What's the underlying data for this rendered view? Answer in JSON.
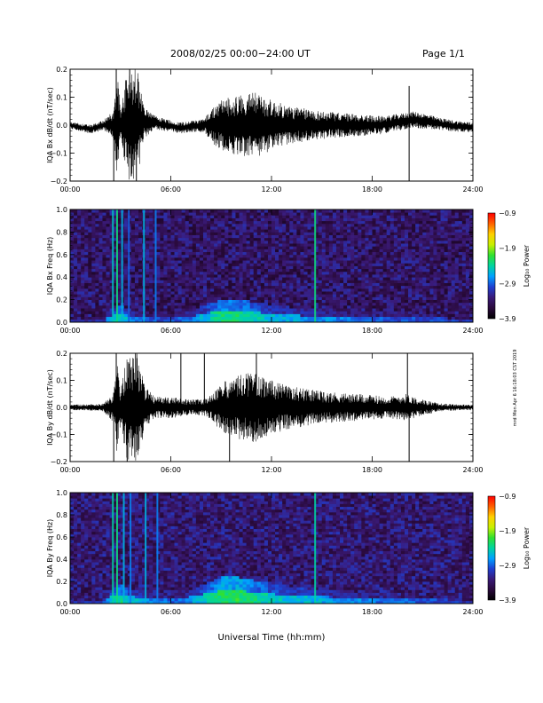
{
  "header": {
    "title": "2008/02/25  00:00−24:00 UT",
    "page": "Page 1/1"
  },
  "footer": {
    "xlabel": "Universal Time (hh:mm)",
    "side_note": "mrd Mon Apr 6 16:18:03 CST 2019"
  },
  "colors": {
    "trace": "#000000",
    "colormap": [
      "#000000",
      "#2a0a3c",
      "#3a1a78",
      "#1f3fd0",
      "#00a0ff",
      "#00d4a0",
      "#30e030",
      "#c8f000",
      "#ffd000",
      "#ff6000",
      "#ff0000"
    ]
  },
  "chart_data": [
    {
      "type": "line",
      "name": "iqa-bx-waveform",
      "ylabel": "IQA Bx dB/dt (nT/sec)",
      "xlim": [
        0,
        24
      ],
      "ylim": [
        -0.2,
        0.2
      ],
      "xticks": [
        "00:00",
        "06:00",
        "12:00",
        "18:00",
        "24:00"
      ],
      "yticks": [
        "−0.2",
        "−0.1",
        "0.0",
        "0.1",
        "0.2"
      ],
      "ytick_values": [
        -0.2,
        -0.1,
        0.0,
        0.1,
        0.2
      ],
      "envelope": {
        "x": [
          0,
          1,
          2,
          2.6,
          2.8,
          3.0,
          3.4,
          3.7,
          4.0,
          4.4,
          5.0,
          6.0,
          7.0,
          8.0,
          8.4,
          9.0,
          10.0,
          11.0,
          12.0,
          13.0,
          14.0,
          15.0,
          16.0,
          17.0,
          18.0,
          19.0,
          20.0,
          21.0,
          22.0,
          23.0,
          24.0
        ],
        "amp": [
          0.012,
          0.015,
          0.018,
          0.05,
          0.2,
          0.06,
          0.2,
          0.2,
          0.2,
          0.06,
          0.025,
          0.02,
          0.02,
          0.025,
          0.06,
          0.09,
          0.11,
          0.12,
          0.09,
          0.07,
          0.06,
          0.05,
          0.045,
          0.04,
          0.035,
          0.03,
          0.03,
          0.028,
          0.022,
          0.02,
          0.02
        ]
      },
      "offset": {
        "x": [
          0,
          1.2,
          2.0,
          5.0,
          6.5,
          8.0,
          18.5,
          20.5,
          22.5,
          24.0
        ],
        "y": [
          0.0,
          -0.015,
          0.0,
          0.01,
          -0.01,
          0.0,
          0.0,
          0.02,
          0.0,
          -0.01
        ]
      },
      "spikes": [
        {
          "t": 2.6,
          "y": -0.2
        },
        {
          "t": 2.75,
          "y": 0.2
        },
        {
          "t": 3.55,
          "y": 0.2
        },
        {
          "t": 3.95,
          "y": -0.2
        },
        {
          "t": 20.2,
          "y": 0.14
        },
        {
          "t": 20.2,
          "y": -0.2
        }
      ]
    },
    {
      "type": "heatmap",
      "name": "iqa-bx-spectrogram",
      "ylabel": "IQA Bx Freq (Hz)",
      "colorbar_label": "Log₁₀ Power",
      "xlim": [
        0,
        24
      ],
      "ylim": [
        0,
        1.0
      ],
      "clim": [
        -3.9,
        -0.9
      ],
      "xticks": [
        "00:00",
        "06:00",
        "12:00",
        "18:00",
        "24:00"
      ],
      "yticks": [
        "0.0",
        "0.2",
        "0.4",
        "0.6",
        "0.8",
        "1.0"
      ],
      "ytick_values": [
        0,
        0.2,
        0.4,
        0.6,
        0.8,
        1.0
      ],
      "cbar_ticks": [
        "−0.9",
        "−1.9",
        "−2.9",
        "−3.9"
      ],
      "cbar_tick_values": [
        -0.9,
        -1.9,
        -2.9,
        -3.9
      ],
      "background_power": -3.4,
      "low_freq_band": {
        "x": [
          0,
          2,
          2.5,
          3.0,
          3.5,
          4.0,
          5.0,
          6.0,
          7.0,
          8.0,
          9.0,
          10.0,
          12.0,
          14.0,
          16.0,
          18.0,
          20.0,
          22.0,
          24.0
        ],
        "power": [
          -3.2,
          -3.1,
          -2.6,
          -2.4,
          -2.7,
          -2.8,
          -3.0,
          -3.0,
          -2.9,
          -2.6,
          -2.3,
          -2.3,
          -2.6,
          -2.7,
          -2.8,
          -2.9,
          -3.0,
          -3.0,
          -3.1
        ],
        "height_hz": [
          0.03,
          0.03,
          0.06,
          0.08,
          0.06,
          0.05,
          0.04,
          0.04,
          0.05,
          0.08,
          0.1,
          0.1,
          0.08,
          0.06,
          0.05,
          0.05,
          0.04,
          0.04,
          0.03
        ]
      },
      "broadband_lines": [
        {
          "t": 2.55,
          "power": -2.5
        },
        {
          "t": 2.8,
          "power": -2.3
        },
        {
          "t": 3.1,
          "power": -2.6
        },
        {
          "t": 3.5,
          "power": -2.9
        },
        {
          "t": 4.4,
          "power": -2.6
        },
        {
          "t": 5.1,
          "power": -2.8
        },
        {
          "t": 14.6,
          "power": -2.3
        }
      ]
    },
    {
      "type": "line",
      "name": "iqa-by-waveform",
      "ylabel": "IQA By dB/dt (nT/sec)",
      "xlim": [
        0,
        24
      ],
      "ylim": [
        -0.2,
        0.2
      ],
      "xticks": [
        "00:00",
        "06:00",
        "12:00",
        "18:00",
        "24:00"
      ],
      "yticks": [
        "−0.2",
        "−0.1",
        "0.0",
        "0.1",
        "0.2"
      ],
      "ytick_values": [
        -0.2,
        -0.1,
        0.0,
        0.1,
        0.2
      ],
      "envelope": {
        "x": [
          0,
          1,
          2,
          2.6,
          2.8,
          3.0,
          3.4,
          3.7,
          4.0,
          4.5,
          5.0,
          6.0,
          7.0,
          8.0,
          8.5,
          9.0,
          10.0,
          11.0,
          12.0,
          13.0,
          14.0,
          15.0,
          16.0,
          17.0,
          18.0,
          19.0,
          20.0,
          21.0,
          22.0,
          23.0,
          24.0
        ],
        "amp": [
          0.01,
          0.012,
          0.015,
          0.06,
          0.2,
          0.07,
          0.2,
          0.2,
          0.2,
          0.08,
          0.04,
          0.04,
          0.03,
          0.03,
          0.05,
          0.09,
          0.12,
          0.13,
          0.1,
          0.08,
          0.07,
          0.06,
          0.055,
          0.05,
          0.045,
          0.04,
          0.05,
          0.03,
          0.015,
          0.012,
          0.01
        ]
      },
      "offset": {
        "x": [
          0,
          24
        ],
        "y": [
          0.0,
          0.0
        ]
      },
      "spikes": [
        {
          "t": 2.6,
          "y": -0.2
        },
        {
          "t": 2.75,
          "y": 0.2
        },
        {
          "t": 3.4,
          "y": -0.2
        },
        {
          "t": 3.9,
          "y": 0.2
        },
        {
          "t": 6.6,
          "y": 0.2
        },
        {
          "t": 8.0,
          "y": 0.2
        },
        {
          "t": 9.5,
          "y": -0.2
        },
        {
          "t": 11.1,
          "y": 0.2
        },
        {
          "t": 20.1,
          "y": 0.2
        },
        {
          "t": 20.2,
          "y": -0.2
        }
      ]
    },
    {
      "type": "heatmap",
      "name": "iqa-by-spectrogram",
      "ylabel": "IQA By Freq (Hz)",
      "colorbar_label": "Log₁₀ Power",
      "xlim": [
        0,
        24
      ],
      "ylim": [
        0,
        1.0
      ],
      "clim": [
        -3.9,
        -0.9
      ],
      "xticks": [
        "00:00",
        "06:00",
        "12:00",
        "18:00",
        "24:00"
      ],
      "yticks": [
        "0.0",
        "0.2",
        "0.4",
        "0.6",
        "0.8",
        "1.0"
      ],
      "ytick_values": [
        0,
        0.2,
        0.4,
        0.6,
        0.8,
        1.0
      ],
      "cbar_ticks": [
        "−0.9",
        "−1.9",
        "−2.9",
        "−3.9"
      ],
      "cbar_tick_values": [
        -0.9,
        -1.9,
        -2.9,
        -3.9
      ],
      "background_power": -3.35,
      "low_freq_band": {
        "x": [
          0,
          2,
          2.5,
          3.0,
          3.5,
          4.0,
          5.0,
          6.0,
          7.0,
          8.0,
          9.0,
          10.0,
          12.0,
          14.0,
          16.0,
          18.0,
          20.0,
          22.0,
          24.0
        ],
        "power": [
          -3.1,
          -3.0,
          -2.5,
          -2.3,
          -2.5,
          -2.6,
          -2.8,
          -2.9,
          -2.8,
          -2.5,
          -2.2,
          -2.2,
          -2.5,
          -2.6,
          -2.7,
          -2.8,
          -2.9,
          -3.0,
          -3.1
        ],
        "height_hz": [
          0.03,
          0.03,
          0.07,
          0.09,
          0.07,
          0.06,
          0.05,
          0.05,
          0.06,
          0.09,
          0.12,
          0.12,
          0.09,
          0.07,
          0.06,
          0.05,
          0.05,
          0.04,
          0.03
        ]
      },
      "broadband_lines": [
        {
          "t": 2.55,
          "power": -2.4
        },
        {
          "t": 2.8,
          "power": -2.3
        },
        {
          "t": 3.2,
          "power": -2.6
        },
        {
          "t": 3.6,
          "power": -2.8
        },
        {
          "t": 4.5,
          "power": -2.6
        },
        {
          "t": 5.2,
          "power": -2.8
        },
        {
          "t": 14.6,
          "power": -2.4
        }
      ]
    }
  ]
}
